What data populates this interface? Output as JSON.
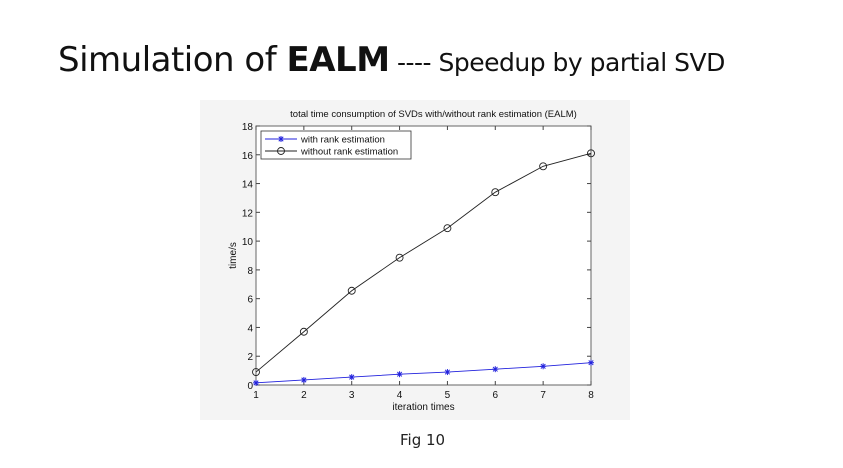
{
  "slide": {
    "title_part1": "Simulation of ",
    "title_bold": "EALM",
    "title_sub": " ---- Speedup by partial SVD",
    "caption": "Fig 10"
  },
  "chart_data": {
    "type": "line",
    "title": "total time consumption of SVDs with/without rank estimation (EALM)",
    "xlabel": "iteration times",
    "ylabel": "time/s",
    "x": [
      1,
      2,
      3,
      4,
      5,
      6,
      7,
      8
    ],
    "xlim": [
      1,
      8
    ],
    "ylim": [
      0,
      18
    ],
    "xticks": [
      1,
      2,
      3,
      4,
      5,
      6,
      7,
      8
    ],
    "yticks": [
      0,
      2,
      4,
      6,
      8,
      10,
      12,
      14,
      16,
      18
    ],
    "grid": false,
    "legend_position": "upper left",
    "series": [
      {
        "name": "with rank estimation",
        "marker": "*",
        "color": "#2222dd",
        "values": [
          0.15,
          0.35,
          0.55,
          0.75,
          0.9,
          1.1,
          1.3,
          1.55
        ]
      },
      {
        "name": "without rank estimation",
        "marker": "o",
        "color": "#222222",
        "values": [
          0.9,
          3.7,
          6.55,
          8.85,
          10.9,
          13.4,
          15.2,
          16.1
        ]
      }
    ]
  }
}
